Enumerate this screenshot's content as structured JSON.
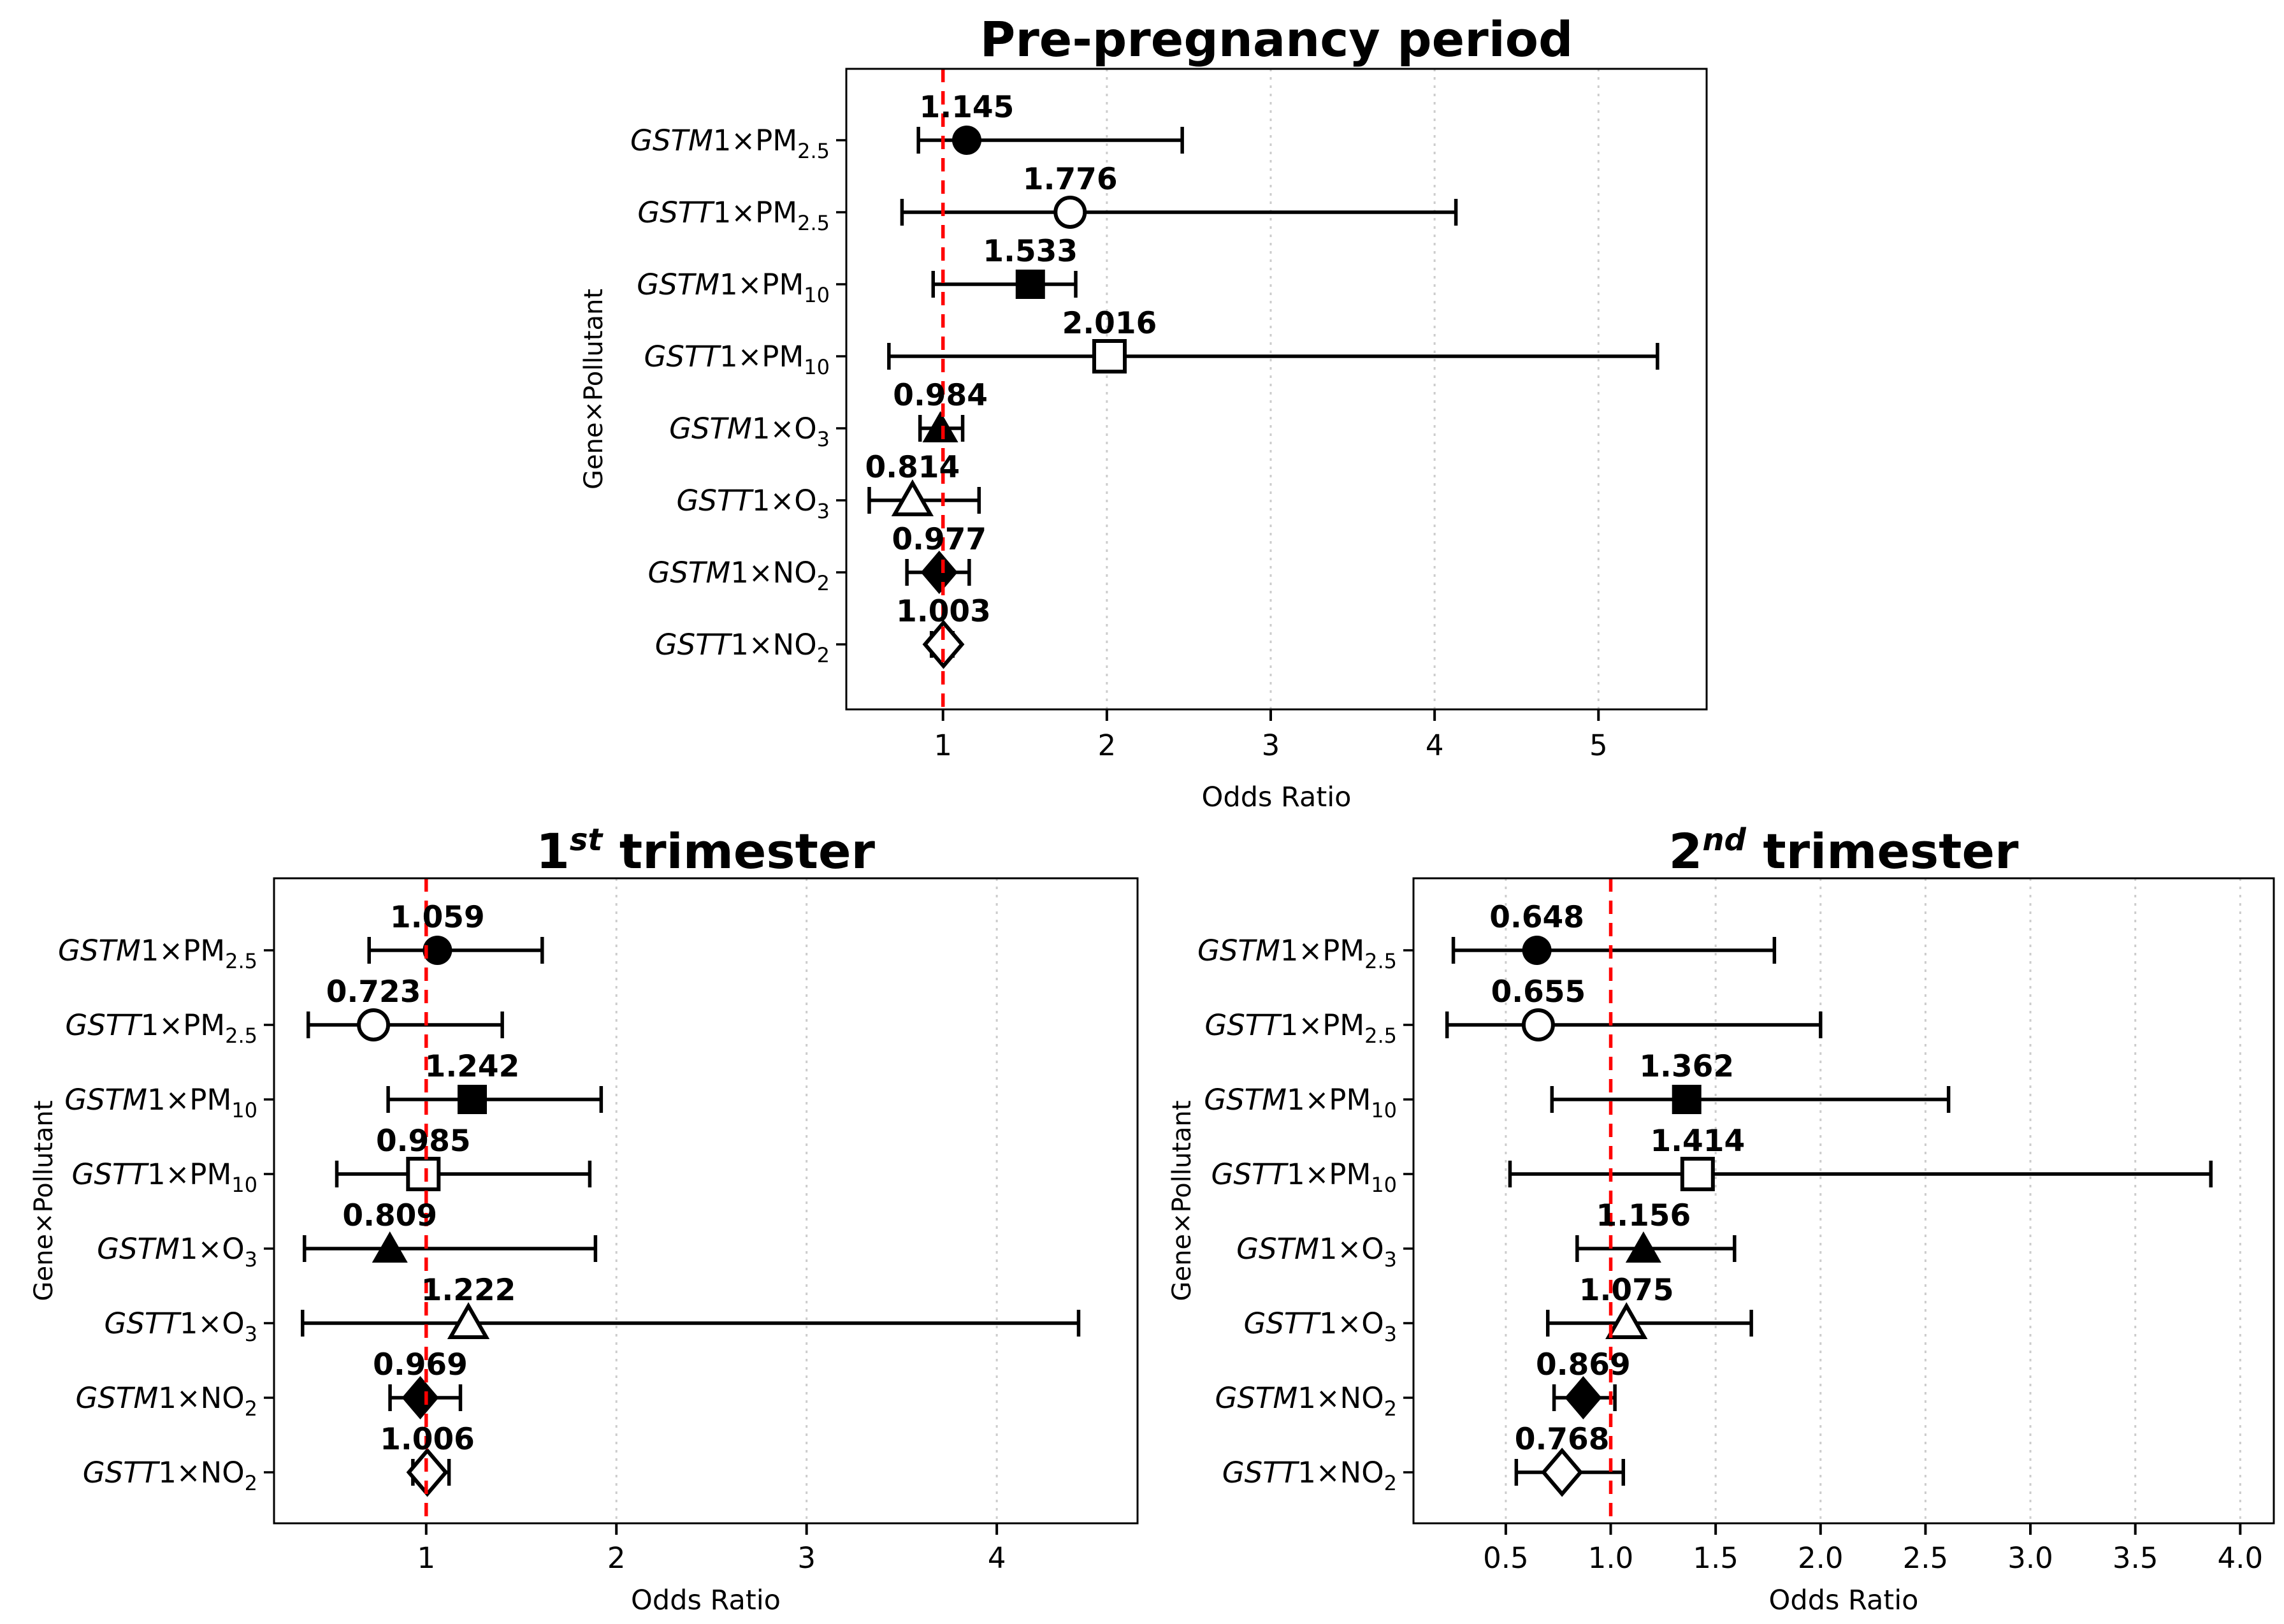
{
  "figure": {
    "background": "#ffffff",
    "colors": {
      "ink": "#000000",
      "refline_red": "#ff0000",
      "gridline": "#cccccc",
      "marker_fill": "#000000",
      "open_marker_fill": "#ffffff"
    }
  },
  "chart_data": [
    {
      "id": "pre-pregnancy-period",
      "type": "forest",
      "title": {
        "text": "Pre-pregnancy period",
        "sup": "",
        "suffix": ""
      },
      "xlabel": "Odds Ratio",
      "ylabel": "Gene×Pollutant",
      "xlim": [
        0.41,
        5.66
      ],
      "refline": 1.0,
      "grid": true,
      "legend": "none",
      "xticks": [
        {
          "v": 1,
          "label": "1"
        },
        {
          "v": 2,
          "label": "2"
        },
        {
          "v": 3,
          "label": "3"
        },
        {
          "v": 4,
          "label": "4"
        },
        {
          "v": 5,
          "label": "5"
        }
      ],
      "rows": [
        {
          "gene": "GSTM1",
          "pollutant": "PM",
          "sub": "2.5",
          "marker": "filled-circle",
          "or": 1.145,
          "or_label": "1.145",
          "ci": [
            0.85,
            2.46
          ]
        },
        {
          "gene": "GSTT1",
          "pollutant": "PM",
          "sub": "2.5",
          "marker": "open-circle",
          "or": 1.776,
          "or_label": "1.776",
          "ci": [
            0.75,
            4.13
          ]
        },
        {
          "gene": "GSTM1",
          "pollutant": "PM",
          "sub": "10",
          "marker": "filled-square",
          "or": 1.533,
          "or_label": "1.533",
          "ci": [
            0.94,
            1.81
          ]
        },
        {
          "gene": "GSTT1",
          "pollutant": "PM",
          "sub": "10",
          "marker": "open-square",
          "or": 2.016,
          "or_label": "2.016",
          "ci": [
            0.67,
            5.36
          ]
        },
        {
          "gene": "GSTM1",
          "pollutant": "O",
          "sub": "3",
          "marker": "filled-triangle",
          "or": 0.984,
          "or_label": "0.984",
          "ci": [
            0.86,
            1.12
          ]
        },
        {
          "gene": "GSTT1",
          "pollutant": "O",
          "sub": "3",
          "marker": "open-triangle",
          "or": 0.814,
          "or_label": "0.814",
          "ci": [
            0.55,
            1.22
          ]
        },
        {
          "gene": "GSTM1",
          "pollutant": "NO",
          "sub": "2",
          "marker": "filled-diamond",
          "or": 0.977,
          "or_label": "0.977",
          "ci": [
            0.78,
            1.16
          ]
        },
        {
          "gene": "GSTT1",
          "pollutant": "NO",
          "sub": "2",
          "marker": "open-diamond",
          "or": 1.003,
          "or_label": "1.003",
          "ci": [
            0.93,
            1.06
          ]
        }
      ]
    },
    {
      "id": "first-trimester",
      "type": "forest",
      "title": {
        "text": "1",
        "sup": "st",
        "suffix": " trimester"
      },
      "xlabel": "Odds Ratio",
      "ylabel": "Gene×Pollutant",
      "xlim": [
        0.2,
        4.74
      ],
      "refline": 1.0,
      "grid": true,
      "legend": "none",
      "xticks": [
        {
          "v": 1,
          "label": "1"
        },
        {
          "v": 2,
          "label": "2"
        },
        {
          "v": 3,
          "label": "3"
        },
        {
          "v": 4,
          "label": "4"
        }
      ],
      "rows": [
        {
          "gene": "GSTM1",
          "pollutant": "PM",
          "sub": "2.5",
          "marker": "filled-circle",
          "or": 1.059,
          "or_label": "1.059",
          "ci": [
            0.7,
            1.61
          ]
        },
        {
          "gene": "GSTT1",
          "pollutant": "PM",
          "sub": "2.5",
          "marker": "open-circle",
          "or": 0.723,
          "or_label": "0.723",
          "ci": [
            0.38,
            1.4
          ]
        },
        {
          "gene": "GSTM1",
          "pollutant": "PM",
          "sub": "10",
          "marker": "filled-square",
          "or": 1.242,
          "or_label": "1.242",
          "ci": [
            0.8,
            1.92
          ]
        },
        {
          "gene": "GSTT1",
          "pollutant": "PM",
          "sub": "10",
          "marker": "open-square",
          "or": 0.985,
          "or_label": "0.985",
          "ci": [
            0.53,
            1.86
          ]
        },
        {
          "gene": "GSTM1",
          "pollutant": "O",
          "sub": "3",
          "marker": "filled-triangle",
          "or": 0.809,
          "or_label": "0.809",
          "ci": [
            0.36,
            1.89
          ]
        },
        {
          "gene": "GSTT1",
          "pollutant": "O",
          "sub": "3",
          "marker": "open-triangle",
          "or": 1.222,
          "or_label": "1.222",
          "ci": [
            0.35,
            4.43
          ]
        },
        {
          "gene": "GSTM1",
          "pollutant": "NO",
          "sub": "2",
          "marker": "filled-diamond",
          "or": 0.969,
          "or_label": "0.969",
          "ci": [
            0.81,
            1.18
          ]
        },
        {
          "gene": "GSTT1",
          "pollutant": "NO",
          "sub": "2",
          "marker": "open-diamond",
          "or": 1.006,
          "or_label": "1.006",
          "ci": [
            0.93,
            1.12
          ]
        }
      ]
    },
    {
      "id": "second-trimester",
      "type": "forest",
      "title": {
        "text": "2",
        "sup": "nd",
        "suffix": " trimester"
      },
      "xlabel": "Odds Ratio",
      "ylabel": "Gene×Pollutant",
      "xlim": [
        0.06,
        4.16
      ],
      "refline": 1.0,
      "grid": true,
      "legend": "none",
      "xticks": [
        {
          "v": 0.5,
          "label": "0.5"
        },
        {
          "v": 1.0,
          "label": "1.0"
        },
        {
          "v": 1.5,
          "label": "1.5"
        },
        {
          "v": 2.0,
          "label": "2.0"
        },
        {
          "v": 2.5,
          "label": "2.5"
        },
        {
          "v": 3.0,
          "label": "3.0"
        },
        {
          "v": 3.5,
          "label": "3.5"
        },
        {
          "v": 4.0,
          "label": "4.0"
        }
      ],
      "rows": [
        {
          "gene": "GSTM1",
          "pollutant": "PM",
          "sub": "2.5",
          "marker": "filled-circle",
          "or": 0.648,
          "or_label": "0.648",
          "ci": [
            0.25,
            1.78
          ]
        },
        {
          "gene": "GSTT1",
          "pollutant": "PM",
          "sub": "2.5",
          "marker": "open-circle",
          "or": 0.655,
          "or_label": "0.655",
          "ci": [
            0.22,
            2.0
          ]
        },
        {
          "gene": "GSTM1",
          "pollutant": "PM",
          "sub": "10",
          "marker": "filled-square",
          "or": 1.362,
          "or_label": "1.362",
          "ci": [
            0.72,
            2.61
          ]
        },
        {
          "gene": "GSTT1",
          "pollutant": "PM",
          "sub": "10",
          "marker": "open-square",
          "or": 1.414,
          "or_label": "1.414",
          "ci": [
            0.52,
            3.86
          ]
        },
        {
          "gene": "GSTM1",
          "pollutant": "O",
          "sub": "3",
          "marker": "filled-triangle",
          "or": 1.156,
          "or_label": "1.156",
          "ci": [
            0.84,
            1.59
          ]
        },
        {
          "gene": "GSTT1",
          "pollutant": "O",
          "sub": "3",
          "marker": "open-triangle",
          "or": 1.075,
          "or_label": "1.075",
          "ci": [
            0.7,
            1.67
          ]
        },
        {
          "gene": "GSTM1",
          "pollutant": "NO",
          "sub": "2",
          "marker": "filled-diamond",
          "or": 0.869,
          "or_label": "0.869",
          "ci": [
            0.73,
            1.02
          ]
        },
        {
          "gene": "GSTT1",
          "pollutant": "NO",
          "sub": "2",
          "marker": "open-diamond",
          "or": 0.768,
          "or_label": "0.768",
          "ci": [
            0.55,
            1.06
          ]
        }
      ]
    }
  ]
}
